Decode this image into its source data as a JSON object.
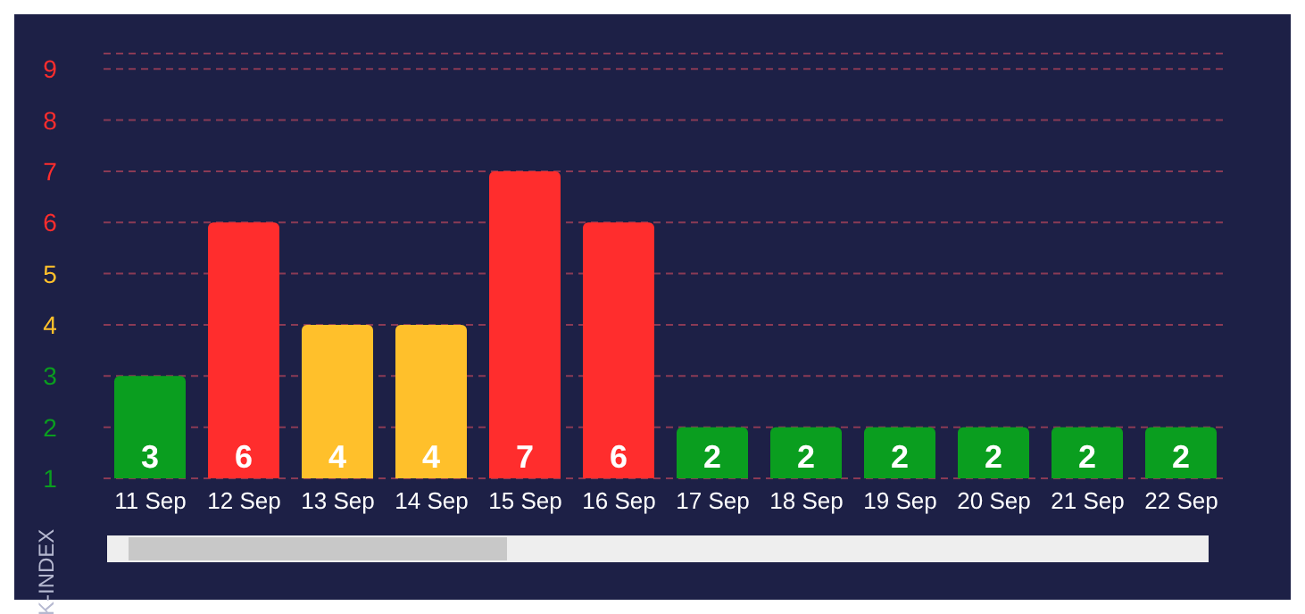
{
  "chart_data": {
    "type": "bar",
    "ylabel": "K-INDEX",
    "categories": [
      "11 Sep",
      "12 Sep",
      "13 Sep",
      "14 Sep",
      "15 Sep",
      "16 Sep",
      "17 Sep",
      "18 Sep",
      "19 Sep",
      "20 Sep",
      "21 Sep",
      "22 Sep"
    ],
    "values": [
      3,
      6,
      4,
      4,
      7,
      6,
      2,
      2,
      2,
      2,
      2,
      2
    ],
    "colors": [
      "#0a9e1f",
      "#ff2d2d",
      "#ffc02b",
      "#ffc02b",
      "#ff2d2d",
      "#ff2d2d",
      "#0a9e1f",
      "#0a9e1f",
      "#0a9e1f",
      "#0a9e1f",
      "#0a9e1f",
      "#0a9e1f"
    ],
    "ylim": [
      1,
      9.3
    ],
    "yticks": [
      1,
      2,
      3,
      4,
      5,
      6,
      7,
      8,
      9
    ],
    "grid": "y",
    "data_labels": true,
    "legend": false
  }
}
